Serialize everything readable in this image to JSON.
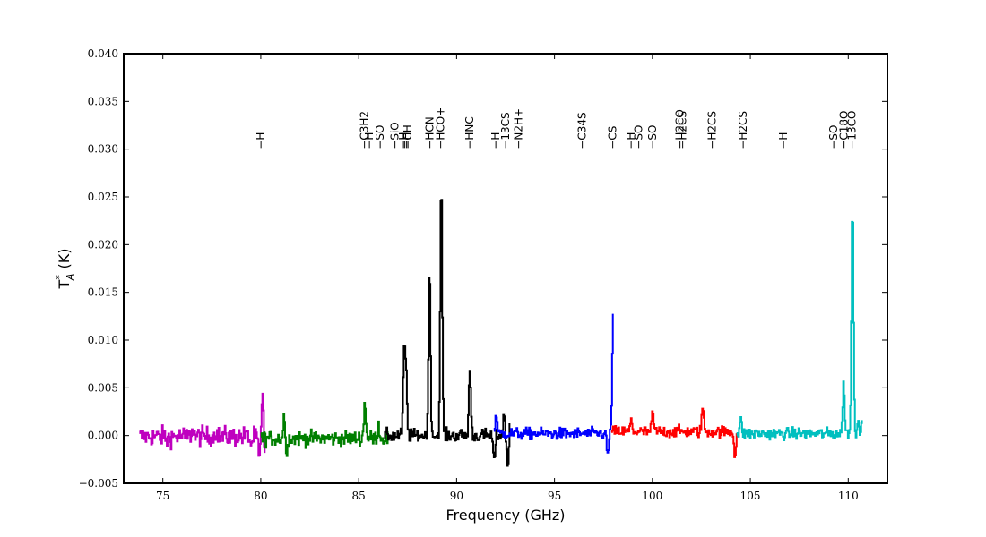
{
  "chart_data": {
    "type": "line",
    "title": "",
    "xlabel": "Frequency (GHz)",
    "ylabel": "T*A (K)",
    "ylabel_main": "T",
    "ylabel_sup": "*",
    "ylabel_sub": "A",
    "ylabel_unit": " (K)",
    "xlim": [
      73.0,
      112.0
    ],
    "ylim": [
      -0.005,
      0.04
    ],
    "xticks": [
      75,
      80,
      85,
      90,
      95,
      100,
      105,
      110
    ],
    "xtick_labels": [
      "75",
      "80",
      "85",
      "90",
      "95",
      "100",
      "105",
      "110"
    ],
    "yticks": [
      -0.005,
      0.0,
      0.005,
      0.01,
      0.015,
      0.02,
      0.025,
      0.03,
      0.035,
      0.04
    ],
    "ytick_labels": [
      "−0.005",
      "0.000",
      "0.005",
      "0.010",
      "0.015",
      "0.020",
      "0.025",
      "0.030",
      "0.035",
      "0.040"
    ],
    "grid": false,
    "legend": "none",
    "series": [
      {
        "color": "#bf00bf",
        "x_range": [
          73.8,
          80.2
        ],
        "noise": 0.0012,
        "base": -0.0001,
        "features": [
          {
            "x": 75.2,
            "y": -0.0005
          },
          {
            "x": 76.5,
            "y": 0.0008
          },
          {
            "x": 77.7,
            "y": 0.0005
          },
          {
            "x": 79.5,
            "y": -0.001
          },
          {
            "x": 79.9,
            "y": -0.0025
          },
          {
            "x": 80.1,
            "y": 0.0065
          },
          {
            "x": 80.15,
            "y": -0.004
          }
        ]
      },
      {
        "color": "#007f00",
        "x_range": [
          80.0,
          86.5
        ],
        "noise": 0.0009,
        "base": -0.0003,
        "features": [
          {
            "x": 81.2,
            "y": 0.0039
          },
          {
            "x": 81.25,
            "y": -0.0037
          },
          {
            "x": 85.3,
            "y": 0.0035
          },
          {
            "x": 86.0,
            "y": 0.001
          }
        ]
      },
      {
        "color": "#000000",
        "x_range": [
          86.3,
          92.7
        ],
        "noise": 0.0008,
        "base": 0.0,
        "features": [
          {
            "x": 87.3,
            "y": 0.008
          },
          {
            "x": 87.4,
            "y": 0.0065
          },
          {
            "x": 88.6,
            "y": 0.0172
          },
          {
            "x": 89.2,
            "y": 0.0262
          },
          {
            "x": 90.66,
            "y": 0.007
          },
          {
            "x": 91.9,
            "y": -0.0028
          },
          {
            "x": 92.4,
            "y": 0.0022
          },
          {
            "x": 92.6,
            "y": -0.0033
          },
          {
            "x": 92.75,
            "y": 0.0028
          }
        ]
      },
      {
        "color": "#0000ff",
        "x_range": [
          91.9,
          98.0
        ],
        "noise": 0.0007,
        "base": 0.0002,
        "features": [
          {
            "x": 92.0,
            "y": 0.0022
          },
          {
            "x": 97.7,
            "y": -0.002
          },
          {
            "x": 97.98,
            "y": 0.0123
          }
        ]
      },
      {
        "color": "#ff0000",
        "x_range": [
          97.9,
          104.3
        ],
        "noise": 0.0007,
        "base": 0.0004,
        "features": [
          {
            "x": 98.9,
            "y": 0.0015
          },
          {
            "x": 100.0,
            "y": 0.0023
          },
          {
            "x": 102.55,
            "y": 0.003
          },
          {
            "x": 104.2,
            "y": -0.002
          }
        ]
      },
      {
        "color": "#00bfbf",
        "x_range": [
          104.3,
          110.7
        ],
        "noise": 0.0007,
        "base": 0.0002,
        "features": [
          {
            "x": 104.5,
            "y": 0.0015
          },
          {
            "x": 109.75,
            "y": 0.0053
          },
          {
            "x": 110.2,
            "y": 0.0241
          },
          {
            "x": 110.5,
            "y": 0.0015
          },
          {
            "x": 110.7,
            "y": 0.0018
          }
        ]
      }
    ],
    "line_ids": [
      {
        "x": 80.0,
        "label": "−H"
      },
      {
        "x": 85.3,
        "label": "−C3H2"
      },
      {
        "x": 85.55,
        "label": "−H"
      },
      {
        "x": 86.1,
        "label": "−SO"
      },
      {
        "x": 86.85,
        "label": "−SiO"
      },
      {
        "x": 87.28,
        "label": "−H"
      },
      {
        "x": 87.36,
        "label": "−H"
      },
      {
        "x": 87.44,
        "label": "−H"
      },
      {
        "x": 87.52,
        "label": "−CH"
      },
      {
        "x": 88.63,
        "label": "−HCN"
      },
      {
        "x": 89.19,
        "label": "−HCO+"
      },
      {
        "x": 90.66,
        "label": "−HNC"
      },
      {
        "x": 92.0,
        "label": "−H"
      },
      {
        "x": 92.49,
        "label": "−13CS"
      },
      {
        "x": 93.17,
        "label": "−N2H+"
      },
      {
        "x": 96.41,
        "label": "−C34S"
      },
      {
        "x": 97.98,
        "label": "−CS"
      },
      {
        "x": 98.9,
        "label": "−H"
      },
      {
        "x": 99.3,
        "label": "−SO"
      },
      {
        "x": 100.0,
        "label": "−SO"
      },
      {
        "x": 101.4,
        "label": "−H2CO"
      },
      {
        "x": 101.55,
        "label": "−H2CS"
      },
      {
        "x": 103.04,
        "label": "−H2CS"
      },
      {
        "x": 104.62,
        "label": "−H2CS"
      },
      {
        "x": 106.7,
        "label": "−H"
      },
      {
        "x": 109.25,
        "label": "−SO"
      },
      {
        "x": 109.78,
        "label": "−C18O"
      },
      {
        "x": 110.2,
        "label": "−13CO"
      }
    ]
  }
}
